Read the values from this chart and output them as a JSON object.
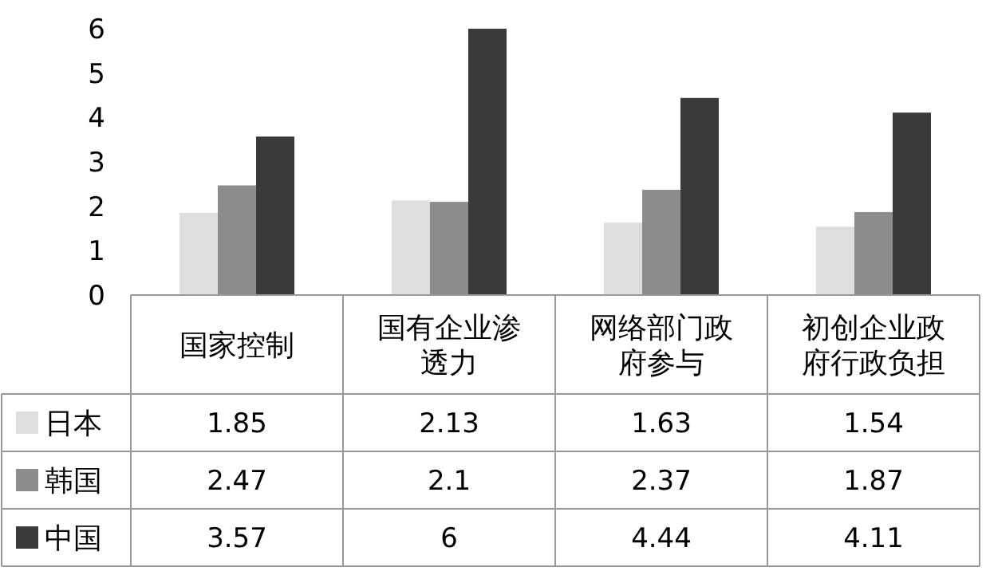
{
  "chart_data": {
    "type": "bar",
    "categories": [
      "国家控制",
      "国有企业渗透力",
      "网络部门政府参与",
      "初创企业政府行政负担"
    ],
    "series": [
      {
        "name": "日本",
        "color": "#dedede",
        "values": [
          1.85,
          2.13,
          1.63,
          1.54
        ]
      },
      {
        "name": "韩国",
        "color": "#8c8c8c",
        "values": [
          2.47,
          2.1,
          2.37,
          1.87
        ]
      },
      {
        "name": "中国",
        "color": "#3a3a3a",
        "values": [
          3.57,
          6,
          4.44,
          4.11
        ]
      }
    ],
    "ylim": [
      0,
      6
    ],
    "yticks": [
      0,
      1,
      2,
      3,
      4,
      5,
      6
    ],
    "data_labels": true,
    "legend": "bottom left"
  }
}
